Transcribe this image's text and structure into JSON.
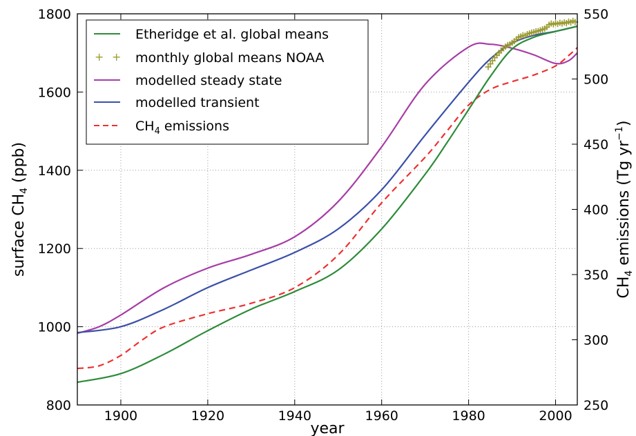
{
  "chart_data": {
    "type": "line",
    "xlabel": "year",
    "ylabel": "surface CH4 (ppb)",
    "ylabel_main": "surface CH",
    "ylabel_sub": "4",
    "ylabel_unit": " (ppb)",
    "y2label": "CH4 emissions (Tg yr−1)",
    "y2label_main": "CH",
    "y2label_sub": "4",
    "y2label_mid": " emissions (Tg yr",
    "y2label_sup": "−1",
    "y2label_end": ")",
    "xlim": [
      1890,
      2005
    ],
    "ylim": [
      800,
      1800
    ],
    "y2lim": [
      250,
      550
    ],
    "xticks": [
      1900,
      1920,
      1940,
      1960,
      1980,
      2000
    ],
    "yticks": [
      800,
      1000,
      1200,
      1400,
      1600,
      1800
    ],
    "y2ticks": [
      250,
      300,
      350,
      400,
      450,
      500,
      550
    ],
    "grid": true,
    "legend_position": "top-left",
    "series": [
      {
        "name": "Etheridge et al. global means",
        "axis": "left",
        "style": "solid",
        "color": "#2e8b3a",
        "x": [
          1890,
          1900,
          1910,
          1920,
          1930,
          1940,
          1950,
          1960,
          1970,
          1975,
          1980,
          1985,
          1990,
          1995,
          2000,
          2005
        ],
        "y": [
          858,
          880,
          930,
          990,
          1045,
          1090,
          1145,
          1250,
          1390,
          1470,
          1555,
          1640,
          1710,
          1740,
          1755,
          1768
        ]
      },
      {
        "name": "monthly global means NOAA",
        "axis": "left",
        "style": "markers",
        "color": "#9a9a30",
        "x": [
          1984.5,
          1985,
          1985.5,
          1986,
          1986.5,
          1987,
          1987.5,
          1988,
          1988.5,
          1989,
          1989.5,
          1990,
          1990.5,
          1991,
          1991.5,
          1992,
          1992.5,
          1993,
          1993.5,
          1994,
          1994.5,
          1995,
          1995.5,
          1996,
          1996.5,
          1997,
          1997.5,
          1998,
          1998.5,
          1999,
          1999.5,
          2000,
          2000.5,
          2001,
          2001.5,
          2002,
          2002.5,
          2003,
          2003.5,
          2004,
          2004.5
        ],
        "y": [
          1664,
          1672,
          1680,
          1688,
          1694,
          1700,
          1706,
          1712,
          1716,
          1720,
          1722,
          1726,
          1730,
          1735,
          1740,
          1742,
          1745,
          1744,
          1748,
          1750,
          1752,
          1753,
          1755,
          1756,
          1758,
          1760,
          1762,
          1766,
          1772,
          1775,
          1773,
          1776,
          1774,
          1777,
          1775,
          1778,
          1776,
          1780,
          1778,
          1782,
          1779
        ]
      },
      {
        "name": "modelled steady state",
        "axis": "left",
        "style": "solid",
        "color": "#a63da6",
        "x": [
          1890,
          1895,
          1900,
          1910,
          1920,
          1930,
          1940,
          1950,
          1960,
          1970,
          1980,
          1985,
          1990,
          1995,
          2000,
          2003,
          2005
        ],
        "y": [
          983,
          1000,
          1030,
          1100,
          1150,
          1185,
          1230,
          1320,
          1460,
          1620,
          1715,
          1722,
          1712,
          1695,
          1673,
          1680,
          1700
        ]
      },
      {
        "name": "modelled transient",
        "axis": "left",
        "style": "solid",
        "color": "#3a50a8",
        "x": [
          1890,
          1900,
          1910,
          1920,
          1930,
          1940,
          1950,
          1960,
          1970,
          1980,
          1985,
          1990,
          1995,
          2000,
          2005
        ],
        "y": [
          985,
          1000,
          1045,
          1100,
          1145,
          1190,
          1250,
          1350,
          1490,
          1625,
          1685,
          1725,
          1745,
          1755,
          1768
        ]
      },
      {
        "name": "CH4 emissions",
        "name_main": "CH",
        "name_sub": "4",
        "name_end": " emissions",
        "axis": "right",
        "style": "dashed",
        "color": "#ee3030",
        "x": [
          1890,
          1895,
          1900,
          1905,
          1910,
          1920,
          1930,
          1940,
          1950,
          1960,
          1970,
          1975,
          1980,
          1985,
          1990,
          1995,
          2000,
          2003,
          2005
        ],
        "y": [
          278,
          280,
          288,
          300,
          310,
          320,
          328,
          340,
          365,
          405,
          440,
          460,
          480,
          492,
          498,
          503,
          510,
          518,
          524
        ]
      }
    ]
  }
}
